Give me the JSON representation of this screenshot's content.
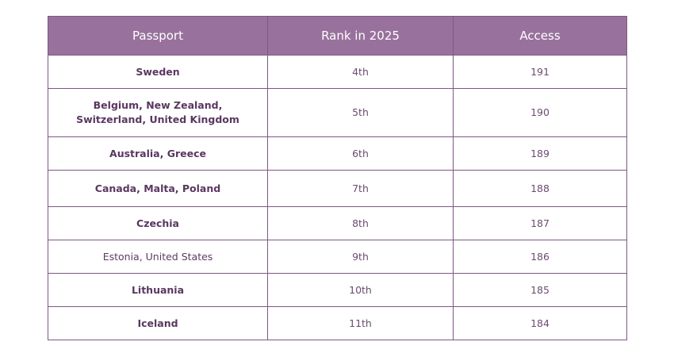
{
  "table": {
    "headers": [
      "Passport",
      "Rank in 2025",
      "Access"
    ],
    "rows": [
      {
        "passport": "Sweden",
        "rank": "4th",
        "access": "191",
        "bold": true,
        "h": 42
      },
      {
        "passport": "Belgium, New Zealand, Switzerland, United Kingdom",
        "rank": "5th",
        "access": "190",
        "bold": true,
        "h": 61
      },
      {
        "passport": "Australia, Greece",
        "rank": "6th",
        "access": "189",
        "bold": true,
        "h": 42
      },
      {
        "passport": "Canada, Malta, Poland",
        "rank": "7th",
        "access": "188",
        "bold": true,
        "h": 46
      },
      {
        "passport": "Czechia",
        "rank": "8th",
        "access": "187",
        "bold": true,
        "h": 42
      },
      {
        "passport": "Estonia, United States",
        "rank": "9th",
        "access": "186",
        "bold": false,
        "h": 42
      },
      {
        "passport": "Lithuania",
        "rank": "10th",
        "access": "185",
        "bold": true,
        "h": 42
      },
      {
        "passport": "Iceland",
        "rank": "11th",
        "access": "184",
        "bold": true,
        "h": 42
      }
    ]
  },
  "colors": {
    "header_bg": "#98729c",
    "border": "#7e5784",
    "text": "#5d3b63"
  }
}
